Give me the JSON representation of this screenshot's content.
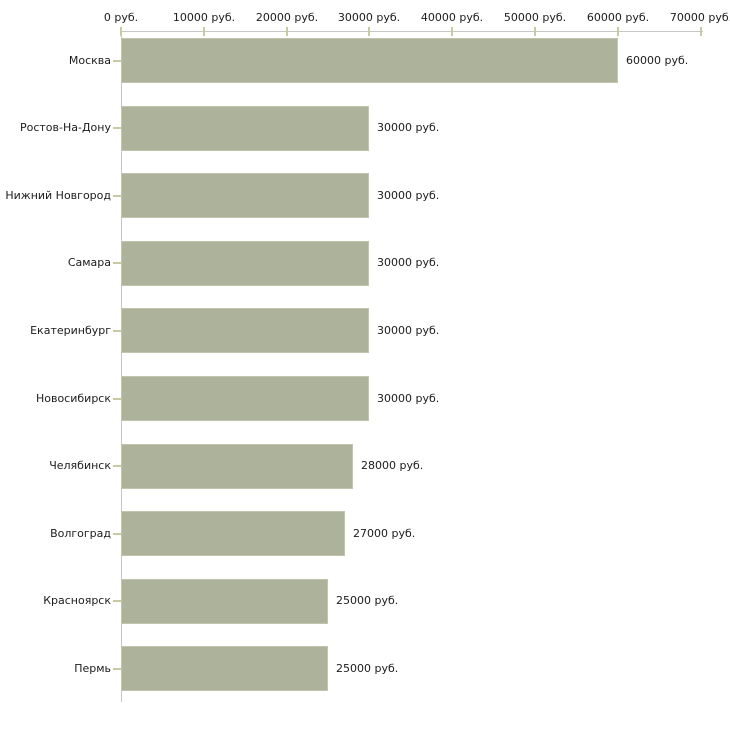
{
  "chart_data": {
    "type": "bar",
    "orientation": "horizontal",
    "title": "",
    "categories": [
      "Москва",
      "Ростов-На-Дону",
      "Нижний Новгород",
      "Самара",
      "Екатеринбург",
      "Новосибирск",
      "Челябинск",
      "Волгоград",
      "Красноярск",
      "Пермь"
    ],
    "values": [
      60000,
      30000,
      30000,
      30000,
      30000,
      30000,
      28000,
      27000,
      25000,
      25000
    ],
    "value_labels": [
      "60000 руб.",
      "30000 руб.",
      "30000 руб.",
      "30000 руб.",
      "30000 руб.",
      "30000 руб.",
      "28000 руб.",
      "27000 руб.",
      "25000 руб.",
      "25000 руб."
    ],
    "x_axis": {
      "position": "top",
      "range": [
        0,
        70000
      ],
      "ticks": [
        0,
        10000,
        20000,
        30000,
        40000,
        50000,
        60000,
        70000
      ],
      "tick_labels": [
        "0 руб.",
        "10000 руб.",
        "20000 руб.",
        "30000 руб.",
        "40000 руб.",
        "50000 руб.",
        "60000 руб.",
        "70000 руб."
      ]
    },
    "grid": false,
    "legend": null,
    "colors": {
      "bar_fill": "#adb29a",
      "bar_border": "#c2c5ae",
      "axis_line": "#c6c6c6",
      "tick_mark": "#c9c9a2",
      "text": "#1c1c1c",
      "background": "#ffffff"
    }
  }
}
